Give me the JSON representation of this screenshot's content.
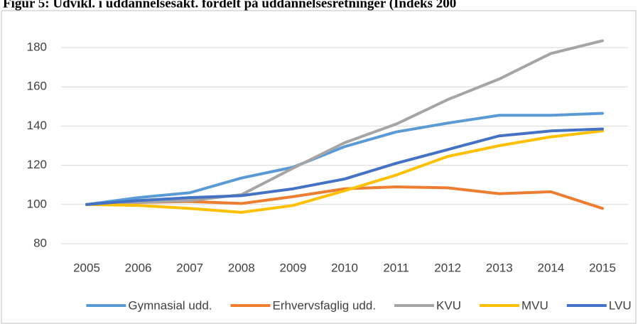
{
  "chart_data": {
    "type": "line",
    "title": "Figur 5: Udvikl. i uddannelsesakt. fordelt på uddannelsesretninger (Indeks 200",
    "categories": [
      "2005",
      "2006",
      "2007",
      "2008",
      "2009",
      "2010",
      "2011",
      "2012",
      "2013",
      "2014",
      "2015"
    ],
    "series": [
      {
        "name": "Gymnasial udd.",
        "color": "#5b9bd5",
        "values": [
          100,
          103.5,
          106,
          113.5,
          119,
          129.5,
          137,
          141.5,
          145.5,
          145.5,
          146.5
        ]
      },
      {
        "name": "Erhvervsfaglig udd.",
        "color": "#ed7d31",
        "values": [
          100,
          101,
          101.5,
          100.5,
          104,
          108,
          109,
          108.5,
          105.5,
          106.5,
          98
        ]
      },
      {
        "name": "KVU",
        "color": "#a5a5a5",
        "values": [
          100,
          101,
          102,
          105,
          118.5,
          131.5,
          141,
          153.5,
          164,
          177,
          183.5
        ]
      },
      {
        "name": "MVU",
        "color": "#ffc000",
        "values": [
          100,
          99.5,
          98,
          96,
          99.5,
          107,
          115,
          124.5,
          130,
          134.5,
          137.5
        ]
      },
      {
        "name": "LVU",
        "color": "#4472c4",
        "values": [
          100,
          102,
          103.5,
          104.5,
          108,
          113,
          121,
          128,
          135,
          137.5,
          138.5
        ]
      }
    ],
    "ylim": [
      80,
      180
    ],
    "yticks": [
      80,
      100,
      120,
      140,
      160,
      180
    ],
    "grid": true,
    "legend": "bottom"
  }
}
